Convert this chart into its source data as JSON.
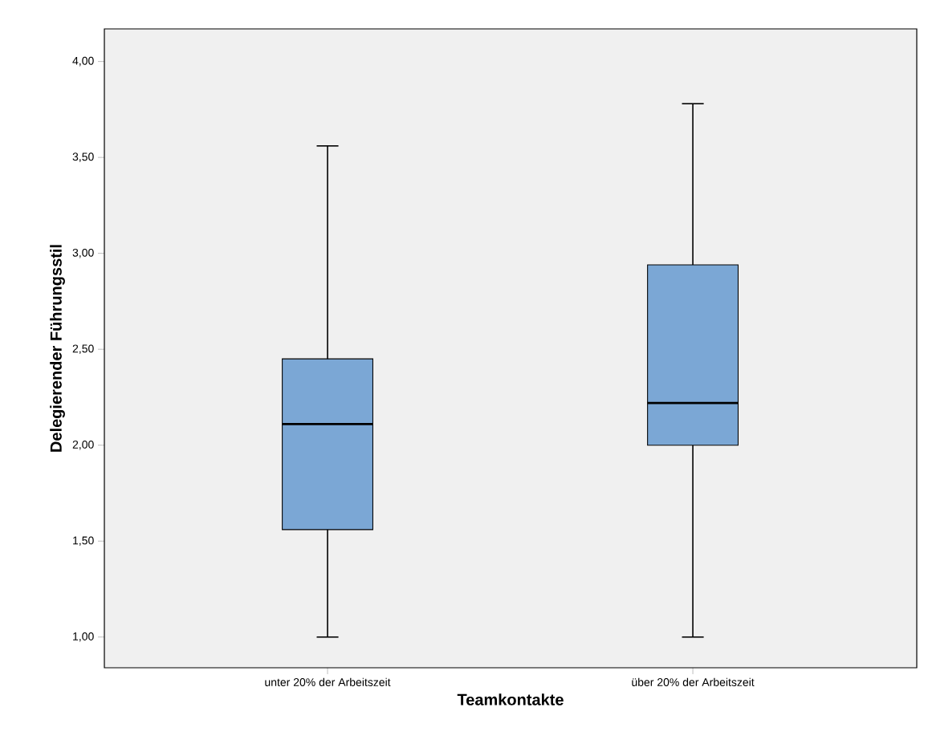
{
  "chart_data": {
    "type": "box",
    "xlabel": "Teamkontakte",
    "ylabel": "Delegierender Führungsstil",
    "categories": [
      "unter 20% der Arbeitszeit",
      "über 20% der Arbeitszeit"
    ],
    "color": "#7ba7d5",
    "boxes": [
      {
        "low": 1.0,
        "q1": 1.56,
        "median": 2.11,
        "q3": 2.45,
        "high": 3.56
      },
      {
        "low": 1.0,
        "q1": 2.0,
        "median": 2.22,
        "q3": 2.94,
        "high": 3.78
      }
    ],
    "ylim": [
      0.84,
      4.17
    ],
    "yticks": [
      {
        "value": 1,
        "label": "1,00"
      },
      {
        "value": 1.5,
        "label": "1,50"
      },
      {
        "value": 2,
        "label": "2,00"
      },
      {
        "value": 2.5,
        "label": "2,50"
      },
      {
        "value": 3,
        "label": "3,00"
      },
      {
        "value": 3.5,
        "label": "3,50"
      },
      {
        "value": 4,
        "label": "4,00"
      }
    ],
    "grid": false
  }
}
